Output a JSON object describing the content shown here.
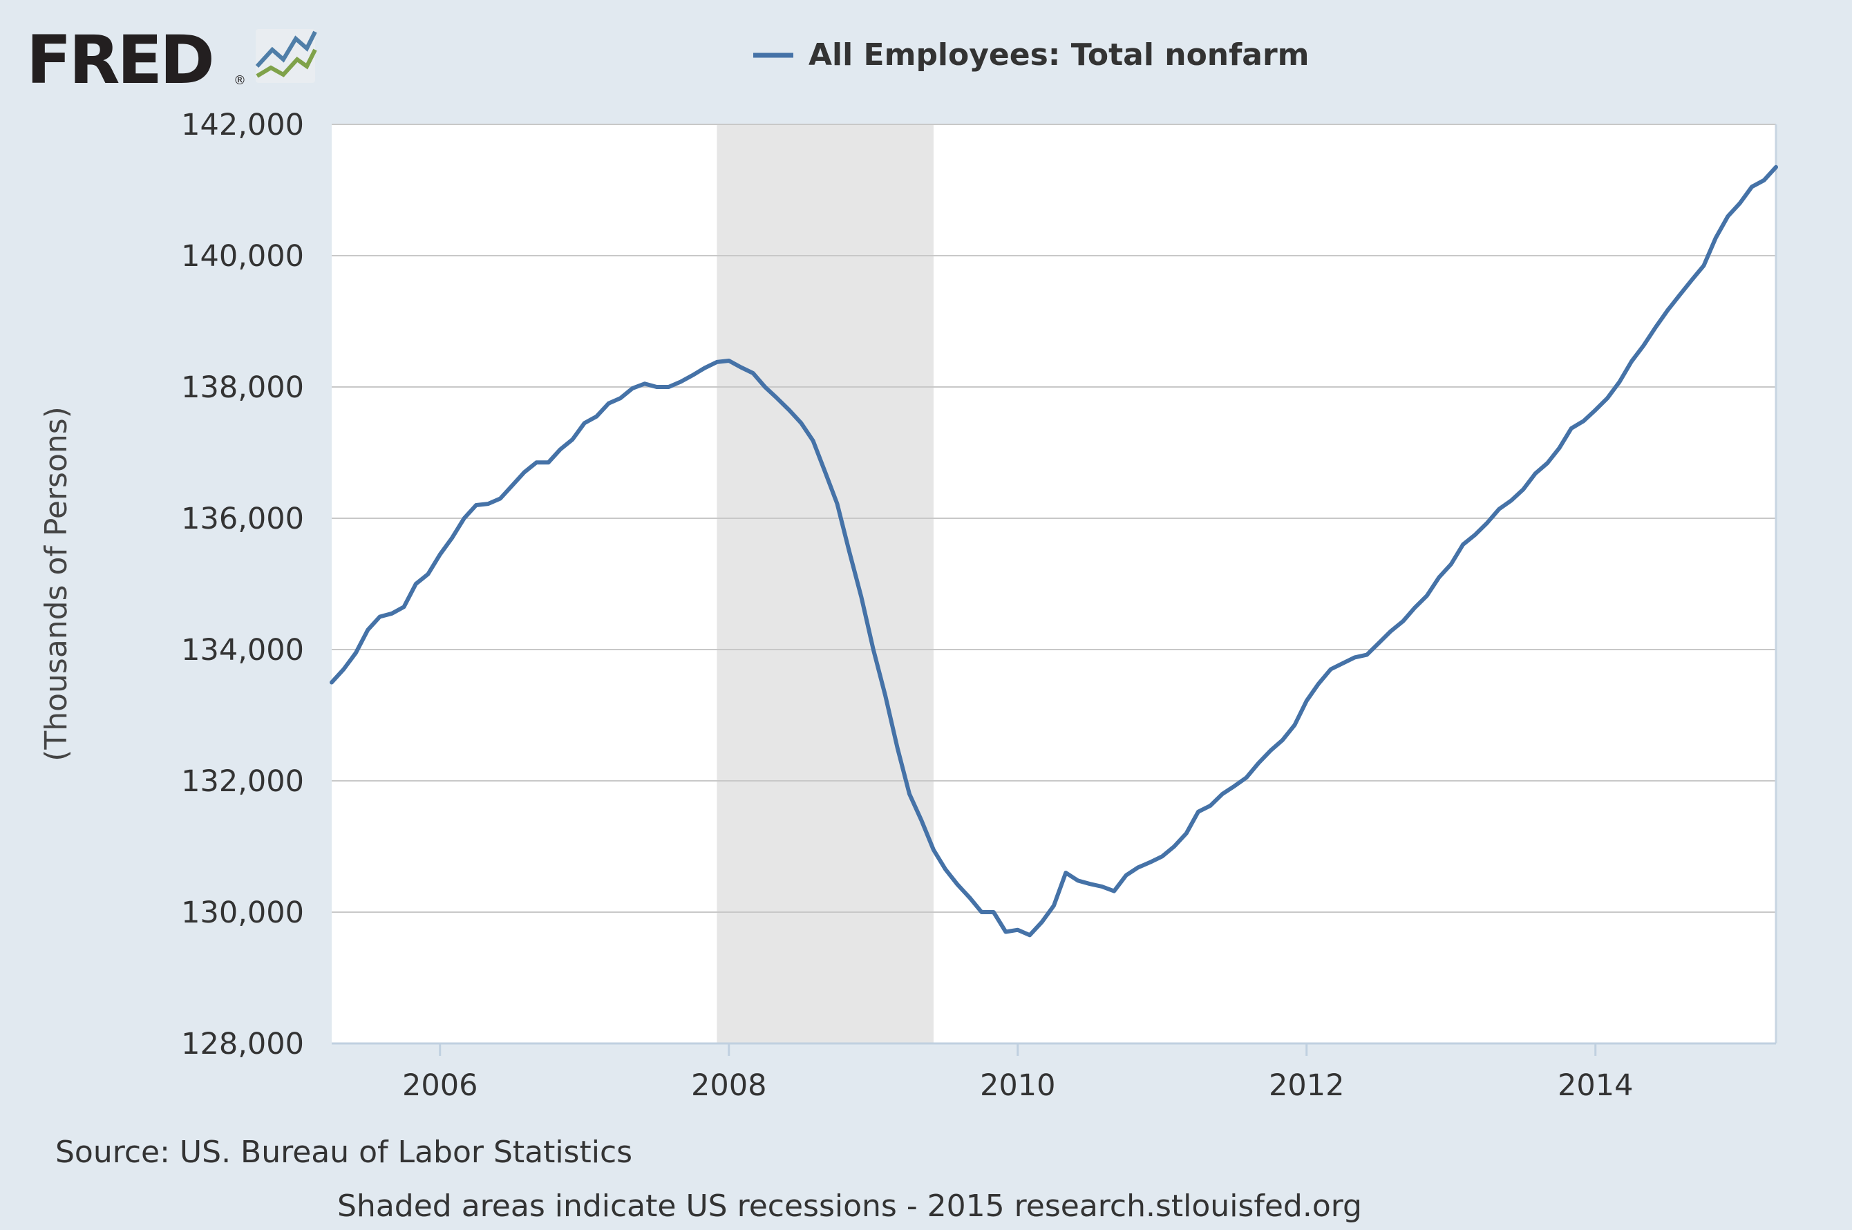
{
  "logo": {
    "text": "FRED",
    "registered": "®"
  },
  "legend": {
    "label": "All Employees: Total nonfarm"
  },
  "footer": {
    "source": "Source: US. Bureau of Labor Statistics",
    "note": "Shaded areas indicate US recessions - 2015 research.stlouisfed.org"
  },
  "colors": {
    "line": "#4572a7",
    "recession": "#e6e6e6",
    "plot_bg": "#ffffff",
    "page_bg": "#e1e9f0",
    "grid": "#c8c8c8"
  },
  "chart_data": {
    "type": "line",
    "title": "",
    "xlabel": "",
    "ylabel": "(Thousands of Persons)",
    "xlim": [
      2005.25,
      2015.25
    ],
    "ylim": [
      128000,
      142000
    ],
    "grid": true,
    "legend_position": "top-center",
    "y_ticks": [
      128000,
      130000,
      132000,
      134000,
      136000,
      138000,
      140000,
      142000
    ],
    "y_tick_labels": [
      "128,000",
      "130,000",
      "132,000",
      "134,000",
      "136,000",
      "138,000",
      "140,000",
      "142,000"
    ],
    "x_ticks": [
      2006,
      2008,
      2010,
      2012,
      2014
    ],
    "x_tick_labels": [
      "2006",
      "2008",
      "2010",
      "2012",
      "2014"
    ],
    "recessions": [
      {
        "start": 2007.917,
        "end": 2009.417
      }
    ],
    "series": [
      {
        "name": "All Employees: Total nonfarm",
        "x": [
          2005.25,
          2005.333,
          2005.417,
          2005.5,
          2005.583,
          2005.667,
          2005.75,
          2005.833,
          2005.917,
          2006.0,
          2006.083,
          2006.167,
          2006.25,
          2006.333,
          2006.417,
          2006.5,
          2006.583,
          2006.667,
          2006.75,
          2006.833,
          2006.917,
          2007.0,
          2007.083,
          2007.167,
          2007.25,
          2007.333,
          2007.417,
          2007.5,
          2007.583,
          2007.667,
          2007.75,
          2007.833,
          2007.917,
          2008.0,
          2008.083,
          2008.167,
          2008.25,
          2008.333,
          2008.417,
          2008.5,
          2008.583,
          2008.667,
          2008.75,
          2008.833,
          2008.917,
          2009.0,
          2009.083,
          2009.167,
          2009.25,
          2009.333,
          2009.417,
          2009.5,
          2009.583,
          2009.667,
          2009.75,
          2009.833,
          2009.917,
          2010.0,
          2010.083,
          2010.167,
          2010.25,
          2010.333,
          2010.417,
          2010.5,
          2010.583,
          2010.667,
          2010.75,
          2010.833,
          2010.917,
          2011.0,
          2011.083,
          2011.167,
          2011.25,
          2011.333,
          2011.417,
          2011.5,
          2011.583,
          2011.667,
          2011.75,
          2011.833,
          2011.917,
          2012.0,
          2012.083,
          2012.167,
          2012.25,
          2012.333,
          2012.417,
          2012.5,
          2012.583,
          2012.667,
          2012.75,
          2012.833,
          2012.917,
          2013.0,
          2013.083,
          2013.167,
          2013.25,
          2013.333,
          2013.417,
          2013.5,
          2013.583,
          2013.667,
          2013.75,
          2013.833,
          2013.917,
          2014.0,
          2014.083,
          2014.167,
          2014.25,
          2014.333,
          2014.417,
          2014.5,
          2014.583,
          2014.667,
          2014.75,
          2014.833,
          2014.917,
          2015.0,
          2015.083,
          2015.167,
          2015.25
        ],
        "values": [
          133500,
          133700,
          133950,
          134300,
          134500,
          134550,
          134650,
          135000,
          135150,
          135450,
          135700,
          136000,
          136200,
          136220,
          136300,
          136500,
          136700,
          136850,
          136850,
          137050,
          137200,
          137450,
          137550,
          137750,
          137830,
          137980,
          138050,
          138000,
          138000,
          138080,
          138180,
          138290,
          138380,
          138400,
          138300,
          138210,
          138000,
          137830,
          137650,
          137450,
          137180,
          136700,
          136220,
          135500,
          134800,
          134000,
          133300,
          132500,
          131800,
          131400,
          130950,
          130650,
          130420,
          130220,
          130000,
          130000,
          129700,
          129730,
          129650,
          129850,
          130100,
          130600,
          130480,
          130430,
          130390,
          130320,
          130560,
          130680,
          130760,
          130850,
          131000,
          131200,
          131530,
          131620,
          131800,
          131920,
          132050,
          132270,
          132460,
          132620,
          132850,
          133220,
          133480,
          133700,
          133790,
          133880,
          133920,
          134100,
          134280,
          134430,
          134640,
          134820,
          135100,
          135300,
          135600,
          135750,
          135930,
          136140,
          136270,
          136440,
          136680,
          136840,
          137070,
          137370,
          137480,
          137650,
          137830,
          138080,
          138390,
          138630,
          138910,
          139170,
          139400,
          139630,
          139850,
          140270,
          140600,
          140800,
          141050,
          141150,
          141350
        ]
      }
    ]
  }
}
